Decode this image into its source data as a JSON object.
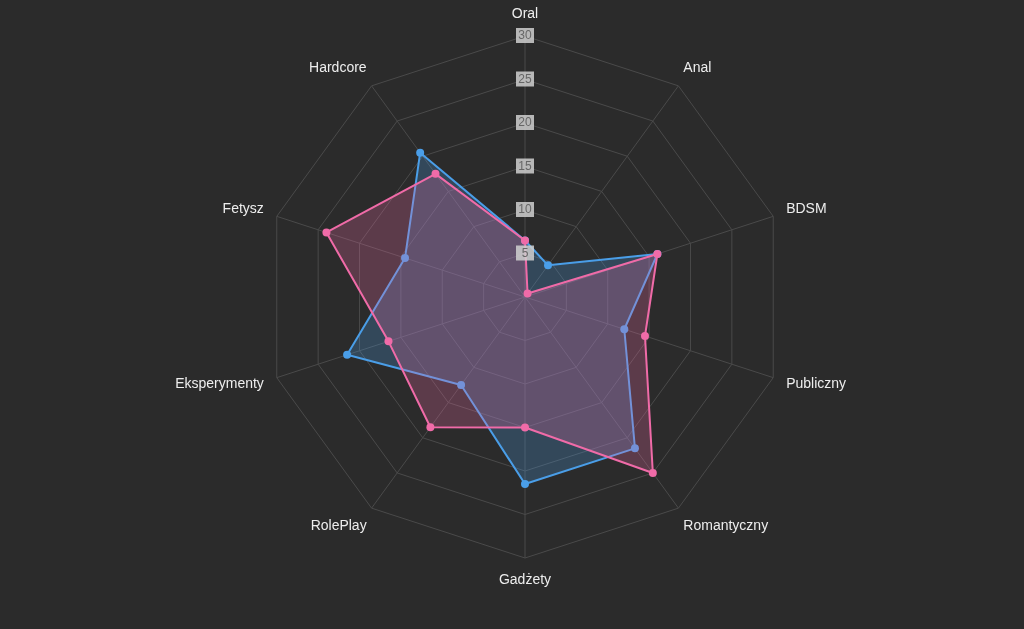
{
  "chart_data": {
    "type": "radar",
    "categories": [
      "Oral",
      "Anal",
      "BDSM",
      "Publiczny",
      "Romantyczny",
      "Gadżety",
      "RolePlay",
      "Eksperymenty",
      "Fetysz",
      "Hardcore"
    ],
    "series": [
      {
        "color": "#4a9ee8",
        "values": [
          6.5,
          4.5,
          16,
          12,
          21.5,
          21.5,
          12.5,
          21.5,
          14.5,
          20.5
        ]
      },
      {
        "color": "#f06ba8",
        "values": [
          6.5,
          0.5,
          16,
          14.5,
          25,
          15,
          18.5,
          16.5,
          24,
          17.5
        ]
      }
    ],
    "ylim": [
      0,
      30
    ],
    "yticks": [
      5,
      10,
      15,
      20,
      25,
      30
    ],
    "grid": true,
    "marker": "circle",
    "line_style": "solid"
  }
}
